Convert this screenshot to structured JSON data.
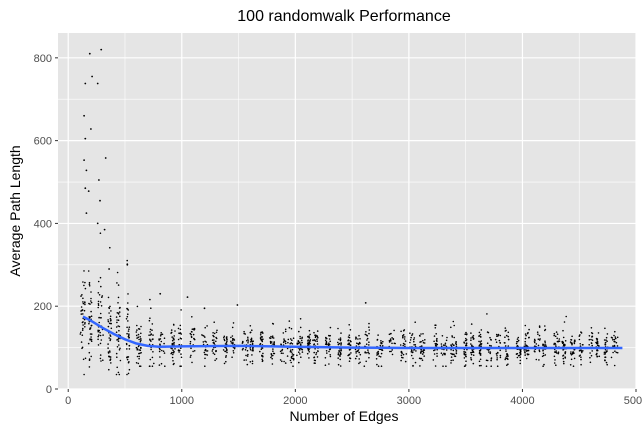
{
  "chart_data": {
    "type": "scatter",
    "title": "100 randomwalk  Performance",
    "xlabel": "Number of Edges",
    "ylabel": "Average Path Length",
    "xlim": [
      -90,
      5000
    ],
    "ylim": [
      0,
      860
    ],
    "x_ticks": [
      0,
      1000,
      2000,
      3000,
      4000,
      5000
    ],
    "y_ticks": [
      0,
      200,
      400,
      600,
      800
    ],
    "x_tick_labels": [
      "0",
      "1000",
      "2000",
      "3000",
      "4000",
      "5000"
    ],
    "y_tick_labels": [
      "0",
      "200",
      "400",
      "600",
      "800"
    ],
    "grid": true,
    "panel_background": "#e5e5e5",
    "grid_color": "#ffffff",
    "point_color": "#000000",
    "smooth_color": "#3366ff",
    "x_range_of_points": [
      130,
      4880
    ],
    "highlighted_points": [
      {
        "x": 190,
        "y": 810
      },
      {
        "x": 290,
        "y": 820
      },
      {
        "x": 210,
        "y": 755
      },
      {
        "x": 150,
        "y": 738
      },
      {
        "x": 260,
        "y": 738
      },
      {
        "x": 140,
        "y": 660
      },
      {
        "x": 200,
        "y": 628
      },
      {
        "x": 150,
        "y": 605
      },
      {
        "x": 330,
        "y": 558
      },
      {
        "x": 140,
        "y": 553
      },
      {
        "x": 160,
        "y": 528
      },
      {
        "x": 270,
        "y": 505
      },
      {
        "x": 150,
        "y": 485
      },
      {
        "x": 180,
        "y": 478
      },
      {
        "x": 280,
        "y": 455
      },
      {
        "x": 160,
        "y": 425
      },
      {
        "x": 260,
        "y": 400
      },
      {
        "x": 320,
        "y": 385
      },
      {
        "x": 520,
        "y": 300
      },
      {
        "x": 360,
        "y": 290
      },
      {
        "x": 810,
        "y": 230
      },
      {
        "x": 1050,
        "y": 222
      },
      {
        "x": 1490,
        "y": 203
      },
      {
        "x": 2620,
        "y": 208
      },
      {
        "x": 1200,
        "y": 195
      }
    ],
    "smooth_line": {
      "x": [
        130,
        200,
        300,
        400,
        500,
        600,
        700,
        800,
        1000,
        1500,
        2000,
        2500,
        3000,
        3500,
        4000,
        4500,
        4880
      ],
      "y": [
        175,
        165,
        148,
        133,
        120,
        110,
        104,
        102,
        103,
        104,
        102,
        100,
        99,
        99,
        99,
        99,
        99
      ]
    }
  }
}
